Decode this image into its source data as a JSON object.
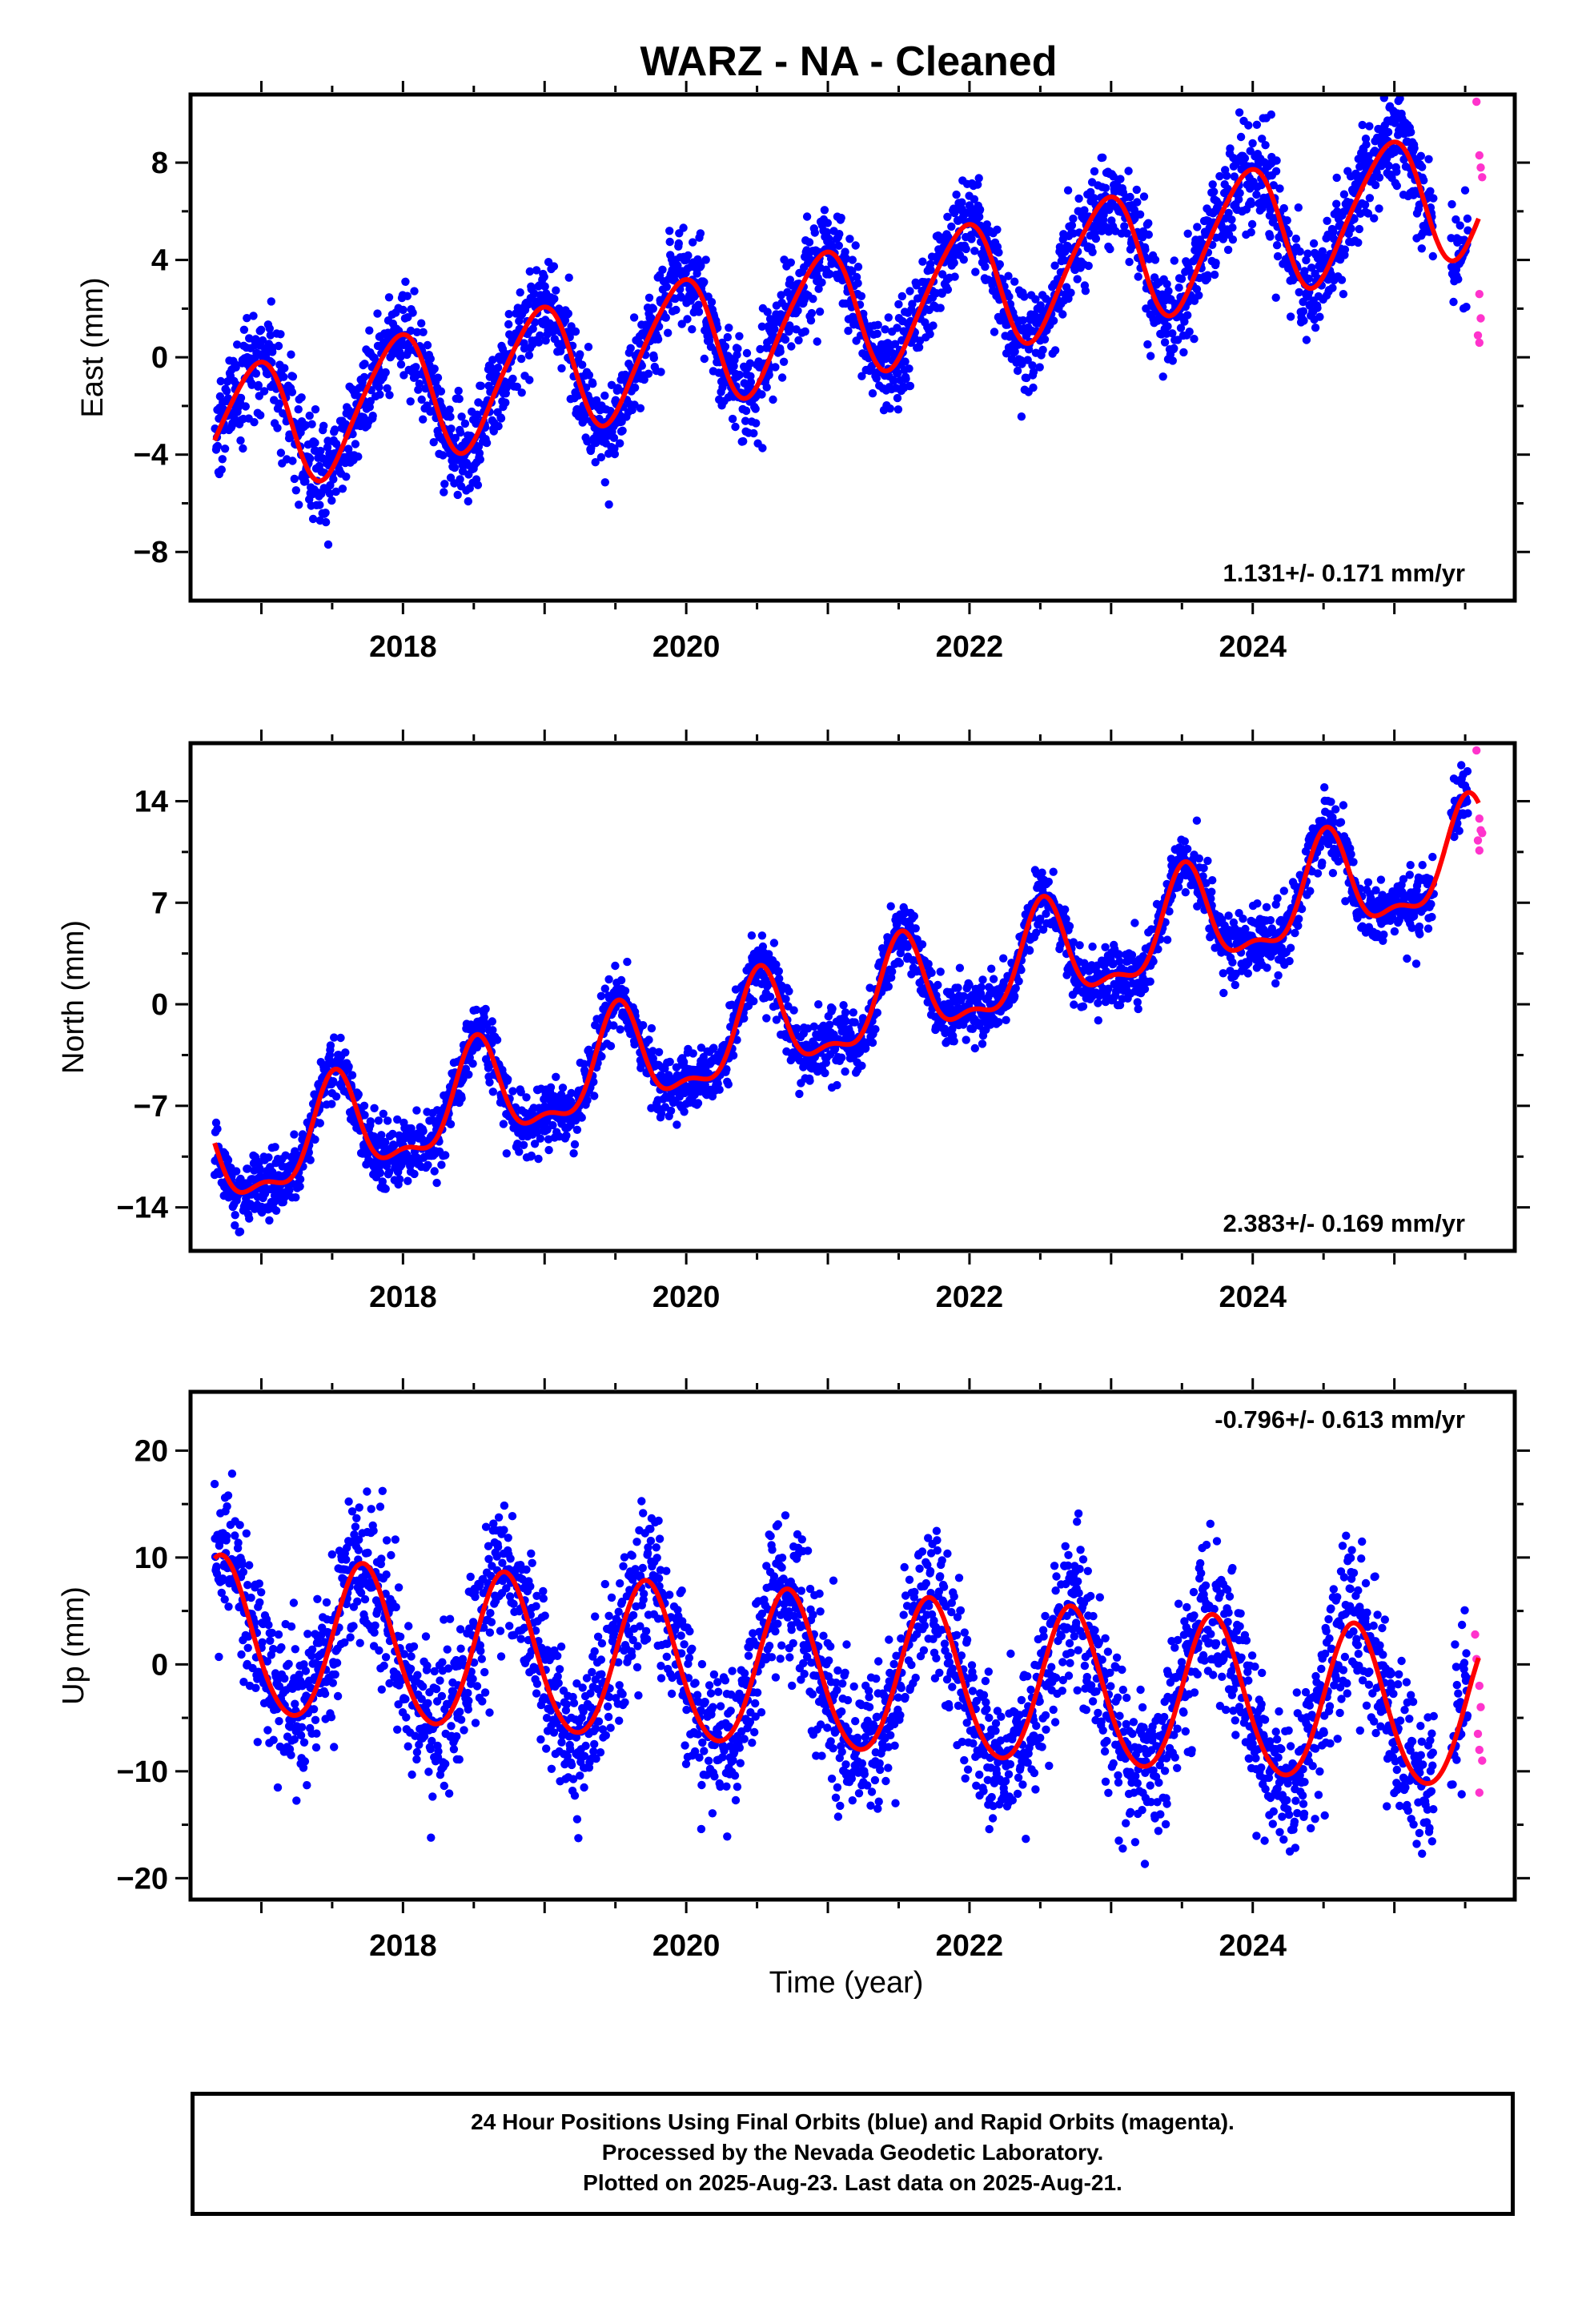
{
  "title": "WARZ  - NA - Cleaned",
  "footer": {
    "line1": "24 Hour Positions Using Final Orbits (blue) and Rapid Orbits (magenta).",
    "line2": "Processed by the Nevada Geodetic Laboratory.",
    "line3": "Plotted on 2025-Aug-23. Last data on 2025-Aug-21."
  },
  "colors": {
    "final_orbits": "#0000ff",
    "rapid_orbits": "#ff33cc",
    "model": "#ff0000",
    "frame": "#000000"
  },
  "chart_data": [
    {
      "type": "scatter",
      "name": "east",
      "ylabel": "East (mm)",
      "xlabel": "",
      "xlim": [
        2016.5,
        2025.85
      ],
      "ylim": [
        -10,
        10.8
      ],
      "yticks": [
        -8,
        -4,
        0,
        4,
        8
      ],
      "ytick_labels": [
        "−8",
        "−4",
        "0",
        "4",
        "8"
      ],
      "xticks": [
        2018,
        2020,
        2022,
        2024
      ],
      "xtick_labels": [
        "2018",
        "2020",
        "2022",
        "2024"
      ],
      "rate_label": "1.131+/- 0.171 mm/yr",
      "rate_position": "bottom-right",
      "model": {
        "t_start": 2016.67,
        "t_end": 2025.6,
        "t_ref": 2016.67,
        "offset": -3.15,
        "rate": 1.131,
        "annual_amp": 2.6,
        "annual_peak": 0.95,
        "semiannual_amp": 0.35,
        "semiannual_peak": 0.1
      },
      "scatter_sigma": 1.0,
      "rapid": {
        "t": [
          2025.58,
          2025.6,
          2025.61,
          2025.62,
          2025.6,
          2025.61,
          2025.59,
          2025.6
        ],
        "y": [
          10.5,
          8.3,
          7.8,
          7.4,
          2.6,
          1.6,
          0.9,
          0.6
        ]
      }
    },
    {
      "type": "scatter",
      "name": "north",
      "ylabel": "North (mm)",
      "xlabel": "",
      "xlim": [
        2016.5,
        2025.85
      ],
      "ylim": [
        -17,
        18
      ],
      "yticks": [
        -14,
        -7,
        0,
        7,
        14
      ],
      "ytick_labels": [
        "−14",
        "−7",
        "0",
        "7",
        "14"
      ],
      "xticks": [
        2018,
        2020,
        2022,
        2024
      ],
      "xtick_labels": [
        "2018",
        "2020",
        "2022",
        "2024"
      ],
      "rate_label": "2.383+/- 0.169 mm/yr",
      "rate_position": "bottom-right",
      "model": {
        "t_start": 2016.67,
        "t_end": 2025.6,
        "t_ref": 2016.67,
        "offset": -11.1,
        "rate": 2.383,
        "annual_amp": 3.3,
        "annual_peak": 0.52,
        "semiannual_amp": 1.3,
        "semiannual_peak": 0.02
      },
      "scatter_sigma": 1.1,
      "rapid": {
        "t": [
          2025.58,
          2025.6,
          2025.61,
          2025.59,
          2025.6,
          2025.62
        ],
        "y": [
          17.5,
          12.8,
          12.0,
          11.3,
          10.6,
          11.8
        ]
      }
    },
    {
      "type": "scatter",
      "name": "up",
      "ylabel": "Up (mm)",
      "xlabel": "Time (year)",
      "xlim": [
        2016.5,
        2025.85
      ],
      "ylim": [
        -22,
        25.5
      ],
      "yticks": [
        -20,
        -10,
        0,
        10,
        20
      ],
      "ytick_labels": [
        "−20",
        "−10",
        "0",
        "10",
        "20"
      ],
      "xticks": [
        2018,
        2020,
        2022,
        2024
      ],
      "xtick_labels": [
        "2018",
        "2020",
        "2022",
        "2024"
      ],
      "rate_label": "-0.796+/- 0.613 mm/yr",
      "rate_position": "top-right",
      "model": {
        "t_start": 2016.67,
        "t_end": 2025.6,
        "t_ref": 2016.67,
        "offset": 2.4,
        "rate": -0.796,
        "annual_amp": 7.3,
        "annual_peak": 0.72,
        "semiannual_amp": 0.6,
        "semiannual_peak": 0.2
      },
      "scatter_sigma": 3.5,
      "rapid": {
        "t": [
          2025.57,
          2025.58,
          2025.6,
          2025.61,
          2025.59,
          2025.6,
          2025.62,
          2025.6
        ],
        "y": [
          2.8,
          0.5,
          -2.0,
          -4.0,
          -6.5,
          -8.0,
          -9.0,
          -12.0
        ]
      }
    }
  ]
}
